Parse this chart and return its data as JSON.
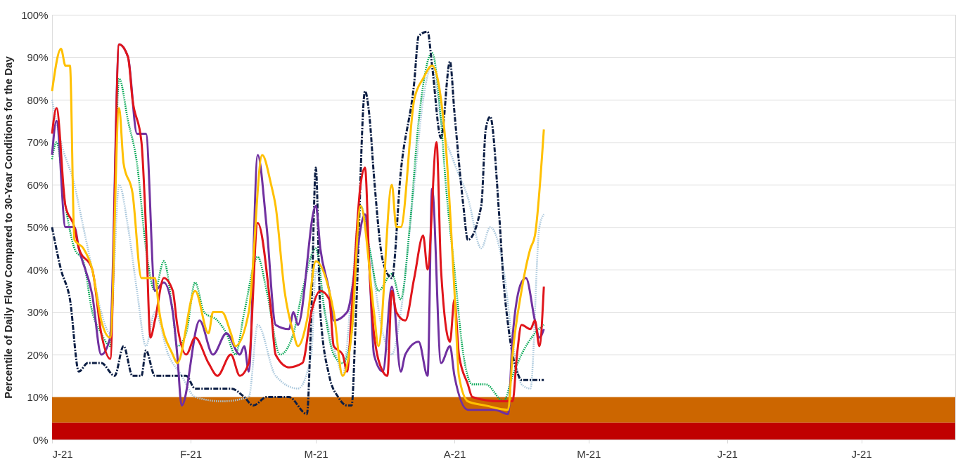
{
  "chart_data": {
    "type": "line",
    "ylabel": "Percentile of Daily Flow Compared to 30-Year Conditions for the Day",
    "xlim": [
      "2021-01-01",
      "2021-07-22"
    ],
    "xticks": [
      {
        "value": "2021-01-01",
        "label": "J-21"
      },
      {
        "value": "2021-02-01",
        "label": "F-21"
      },
      {
        "value": "2021-03-01",
        "label": "M-21"
      },
      {
        "value": "2021-04-01",
        "label": "A-21"
      },
      {
        "value": "2021-05-01",
        "label": "M-21"
      },
      {
        "value": "2021-06-01",
        "label": "J-21"
      },
      {
        "value": "2021-07-01",
        "label": "J-21"
      }
    ],
    "ylim": [
      0,
      100
    ],
    "yticks": [
      {
        "value": 0,
        "label": "0%"
      },
      {
        "value": 10,
        "label": "10%"
      },
      {
        "value": 20,
        "label": "20%"
      },
      {
        "value": 30,
        "label": "30%"
      },
      {
        "value": 40,
        "label": "40%"
      },
      {
        "value": 50,
        "label": "50%"
      },
      {
        "value": 60,
        "label": "60%"
      },
      {
        "value": 70,
        "label": "70%"
      },
      {
        "value": 80,
        "label": "80%"
      },
      {
        "value": 90,
        "label": "90%"
      },
      {
        "value": 100,
        "label": "100%"
      }
    ],
    "grid": "y",
    "bands": [
      {
        "axis": "y",
        "from": 0,
        "to": 4,
        "color": "#c00000"
      },
      {
        "axis": "y",
        "from": 4,
        "to": 10,
        "color": "#cc6600"
      }
    ],
    "series": [
      {
        "color": "#a9c7dc",
        "line_style": "dotted",
        "x": [
          "2021-01-01",
          "2021-01-03",
          "2021-01-06",
          "2021-01-08",
          "2021-01-10",
          "2021-01-12",
          "2021-01-14",
          "2021-01-16",
          "2021-01-18",
          "2021-01-20",
          "2021-01-22",
          "2021-01-24",
          "2021-01-27",
          "2021-01-30",
          "2021-02-02",
          "2021-02-08",
          "2021-02-14",
          "2021-02-16",
          "2021-02-20",
          "2021-02-25",
          "2021-02-28",
          "2021-03-01",
          "2021-03-03",
          "2021-03-06",
          "2021-03-07",
          "2021-03-09",
          "2021-03-11",
          "2021-03-13",
          "2021-03-16",
          "2021-03-18",
          "2021-03-20",
          "2021-03-23",
          "2021-03-25",
          "2021-03-27",
          "2021-03-29",
          "2021-04-01",
          "2021-04-04",
          "2021-04-07",
          "2021-04-09",
          "2021-04-12",
          "2021-04-14",
          "2021-04-16",
          "2021-04-18",
          "2021-04-20",
          "2021-04-21"
        ],
        "values": [
          80,
          70,
          60,
          50,
          40,
          30,
          25,
          60,
          50,
          35,
          22,
          30,
          20,
          15,
          10,
          9,
          10,
          27,
          15,
          12,
          20,
          40,
          30,
          18,
          15,
          35,
          55,
          45,
          25,
          20,
          30,
          60,
          80,
          88,
          75,
          65,
          57,
          45,
          50,
          40,
          23,
          13,
          12,
          50,
          53
        ]
      },
      {
        "color": "#00a651",
        "line_style": "dotted",
        "x": [
          "2021-01-01",
          "2021-01-02",
          "2021-01-04",
          "2021-01-06",
          "2021-01-08",
          "2021-01-10",
          "2021-01-12",
          "2021-01-14",
          "2021-01-16",
          "2021-01-18",
          "2021-01-20",
          "2021-01-22",
          "2021-01-24",
          "2021-01-26",
          "2021-01-28",
          "2021-01-29",
          "2021-01-31",
          "2021-02-02",
          "2021-02-04",
          "2021-02-07",
          "2021-02-09",
          "2021-02-11",
          "2021-02-13",
          "2021-02-16",
          "2021-02-18",
          "2021-02-21",
          "2021-02-24",
          "2021-02-26",
          "2021-03-01",
          "2021-03-03",
          "2021-03-05",
          "2021-03-07",
          "2021-03-09",
          "2021-03-11",
          "2021-03-13",
          "2021-03-15",
          "2021-03-18",
          "2021-03-20",
          "2021-03-22",
          "2021-03-24",
          "2021-03-27",
          "2021-03-29",
          "2021-03-30",
          "2021-04-01",
          "2021-04-03",
          "2021-04-05",
          "2021-04-08",
          "2021-04-12",
          "2021-04-14",
          "2021-04-16",
          "2021-04-19",
          "2021-04-21"
        ],
        "values": [
          66,
          70,
          55,
          45,
          42,
          30,
          25,
          22,
          85,
          75,
          65,
          45,
          35,
          42,
          30,
          22,
          25,
          37,
          30,
          28,
          25,
          20,
          30,
          43,
          35,
          20,
          25,
          35,
          45,
          30,
          20,
          18,
          25,
          55,
          45,
          35,
          39,
          33,
          50,
          75,
          91,
          75,
          61,
          40,
          20,
          13,
          13,
          9,
          15,
          20,
          25,
          27
        ]
      },
      {
        "color": "#0d1f45",
        "line_style": "dashed",
        "x": [
          "2021-01-01",
          "2021-01-03",
          "2021-01-05",
          "2021-01-07",
          "2021-01-09",
          "2021-01-12",
          "2021-01-15",
          "2021-01-17",
          "2021-01-19",
          "2021-01-21",
          "2021-01-22",
          "2021-01-24",
          "2021-01-28",
          "2021-01-31",
          "2021-02-02",
          "2021-02-06",
          "2021-02-10",
          "2021-02-13",
          "2021-02-15",
          "2021-02-18",
          "2021-02-23",
          "2021-02-27",
          "2021-02-28",
          "2021-03-01",
          "2021-03-02",
          "2021-03-04",
          "2021-03-06",
          "2021-03-08",
          "2021-03-09",
          "2021-03-10",
          "2021-03-12",
          "2021-03-13",
          "2021-03-14",
          "2021-03-16",
          "2021-03-18",
          "2021-03-20",
          "2021-03-23",
          "2021-03-24",
          "2021-03-26",
          "2021-03-27",
          "2021-03-29",
          "2021-03-31",
          "2021-04-01",
          "2021-04-03",
          "2021-04-04",
          "2021-04-07",
          "2021-04-08",
          "2021-04-09",
          "2021-04-11",
          "2021-04-12",
          "2021-04-13",
          "2021-04-14",
          "2021-04-15",
          "2021-04-16",
          "2021-04-21"
        ],
        "values": [
          50,
          40,
          33,
          16,
          18,
          18,
          15,
          22,
          15,
          15,
          21,
          15,
          15,
          15,
          12,
          12,
          12,
          10,
          8,
          10,
          10,
          6,
          30,
          64,
          30,
          15,
          10,
          8,
          8,
          30,
          82,
          76,
          62,
          42,
          38,
          63,
          84,
          95,
          96,
          88,
          71,
          89,
          77,
          55,
          47,
          55,
          73,
          76,
          53,
          37,
          27,
          20,
          16,
          14,
          14
        ]
      },
      {
        "color": "#7030a0",
        "line_style": "solid",
        "x": [
          "2021-01-01",
          "2021-01-02",
          "2021-01-04",
          "2021-01-06",
          "2021-01-07",
          "2021-01-10",
          "2021-01-12",
          "2021-01-14",
          "2021-01-16",
          "2021-01-18",
          "2021-01-20",
          "2021-01-22",
          "2021-01-24",
          "2021-01-26",
          "2021-01-28",
          "2021-01-29",
          "2021-01-30",
          "2021-02-03",
          "2021-02-06",
          "2021-02-09",
          "2021-02-12",
          "2021-02-13",
          "2021-02-14",
          "2021-02-16",
          "2021-02-18",
          "2021-02-20",
          "2021-02-23",
          "2021-02-24",
          "2021-02-25",
          "2021-03-01",
          "2021-03-02",
          "2021-03-04",
          "2021-03-05",
          "2021-03-08",
          "2021-03-12",
          "2021-03-13",
          "2021-03-14",
          "2021-03-16",
          "2021-03-18",
          "2021-03-20",
          "2021-03-21",
          "2021-03-24",
          "2021-03-26",
          "2021-03-27",
          "2021-03-29",
          "2021-03-31",
          "2021-04-01",
          "2021-04-04",
          "2021-04-10",
          "2021-04-13",
          "2021-04-14",
          "2021-04-16",
          "2021-04-17",
          "2021-04-19",
          "2021-04-20",
          "2021-04-21"
        ],
        "values": [
          67,
          75,
          50,
          50,
          45,
          34,
          20,
          24,
          93,
          90,
          72,
          72,
          35,
          37,
          30,
          20,
          8,
          28,
          20,
          25,
          20,
          22,
          16,
          67,
          50,
          27,
          26,
          30,
          27,
          55,
          45,
          35,
          28,
          30,
          53,
          40,
          20,
          16,
          36,
          16,
          20,
          23,
          15,
          59,
          18,
          22,
          15,
          7,
          7,
          6,
          24,
          37,
          38,
          28,
          24,
          26
        ]
      },
      {
        "color": "#e0151b",
        "line_style": "solid",
        "x": [
          "2021-01-01",
          "2021-01-02",
          "2021-01-04",
          "2021-01-06",
          "2021-01-07",
          "2021-01-10",
          "2021-01-12",
          "2021-01-14",
          "2021-01-16",
          "2021-01-18",
          "2021-01-19",
          "2021-01-21",
          "2021-01-22",
          "2021-01-23",
          "2021-01-24",
          "2021-01-26",
          "2021-01-28",
          "2021-01-29",
          "2021-01-31",
          "2021-02-02",
          "2021-02-05",
          "2021-02-07",
          "2021-02-10",
          "2021-02-12",
          "2021-02-14",
          "2021-02-16",
          "2021-02-19",
          "2021-02-20",
          "2021-02-23",
          "2021-02-26",
          "2021-02-28",
          "2021-03-02",
          "2021-03-04",
          "2021-03-05",
          "2021-03-07",
          "2021-03-08",
          "2021-03-09",
          "2021-03-11",
          "2021-03-12",
          "2021-03-13",
          "2021-03-14",
          "2021-03-16",
          "2021-03-17",
          "2021-03-18",
          "2021-03-19",
          "2021-03-21",
          "2021-03-23",
          "2021-03-25",
          "2021-03-26",
          "2021-03-28",
          "2021-03-29",
          "2021-03-31",
          "2021-04-01",
          "2021-04-02",
          "2021-04-04",
          "2021-04-05",
          "2021-04-11",
          "2021-04-14",
          "2021-04-15",
          "2021-04-16",
          "2021-04-18",
          "2021-04-19",
          "2021-04-20",
          "2021-04-21"
        ],
        "values": [
          72,
          78,
          55,
          50,
          45,
          40,
          25,
          19,
          93,
          90,
          80,
          70,
          50,
          24,
          28,
          38,
          35,
          27,
          20,
          24,
          18,
          15,
          20,
          15,
          18,
          51,
          30,
          20,
          17,
          18,
          30,
          35,
          33,
          22,
          20,
          16,
          30,
          60,
          64,
          40,
          25,
          16,
          15,
          35,
          30,
          28,
          38,
          48,
          40,
          70,
          40,
          23,
          33,
          20,
          13,
          10,
          9,
          9,
          20,
          27,
          26,
          28,
          22,
          36
        ]
      },
      {
        "color": "#ffc000",
        "line_style": "solid",
        "x": [
          "2021-01-01",
          "2021-01-03",
          "2021-01-04",
          "2021-01-05",
          "2021-01-06",
          "2021-01-08",
          "2021-01-10",
          "2021-01-12",
          "2021-01-14",
          "2021-01-16",
          "2021-01-17",
          "2021-01-19",
          "2021-01-21",
          "2021-01-24",
          "2021-01-25",
          "2021-01-28",
          "2021-01-29",
          "2021-02-02",
          "2021-02-05",
          "2021-02-06",
          "2021-02-08",
          "2021-02-10",
          "2021-02-11",
          "2021-02-14",
          "2021-02-17",
          "2021-02-19",
          "2021-02-20",
          "2021-02-22",
          "2021-02-24",
          "2021-02-25",
          "2021-02-27",
          "2021-03-01",
          "2021-03-04",
          "2021-03-05",
          "2021-03-07",
          "2021-03-09",
          "2021-03-11",
          "2021-03-14",
          "2021-03-15",
          "2021-03-18",
          "2021-03-19",
          "2021-03-20",
          "2021-03-23",
          "2021-03-25",
          "2021-03-27",
          "2021-03-30",
          "2021-04-01",
          "2021-04-02",
          "2021-04-04",
          "2021-04-08",
          "2021-04-13",
          "2021-04-14",
          "2021-04-16",
          "2021-04-18",
          "2021-04-19",
          "2021-04-21"
        ],
        "values": [
          82,
          92,
          88,
          88,
          47,
          45,
          40,
          28,
          24,
          78,
          65,
          58,
          38,
          38,
          30,
          20,
          18,
          35,
          25,
          30,
          30,
          25,
          22,
          30,
          67,
          60,
          55,
          35,
          25,
          22,
          28,
          42,
          35,
          30,
          15,
          25,
          55,
          30,
          22,
          60,
          50,
          50,
          80,
          85,
          88,
          70,
          35,
          15,
          9,
          8,
          7,
          20,
          35,
          45,
          48,
          73
        ]
      }
    ]
  }
}
